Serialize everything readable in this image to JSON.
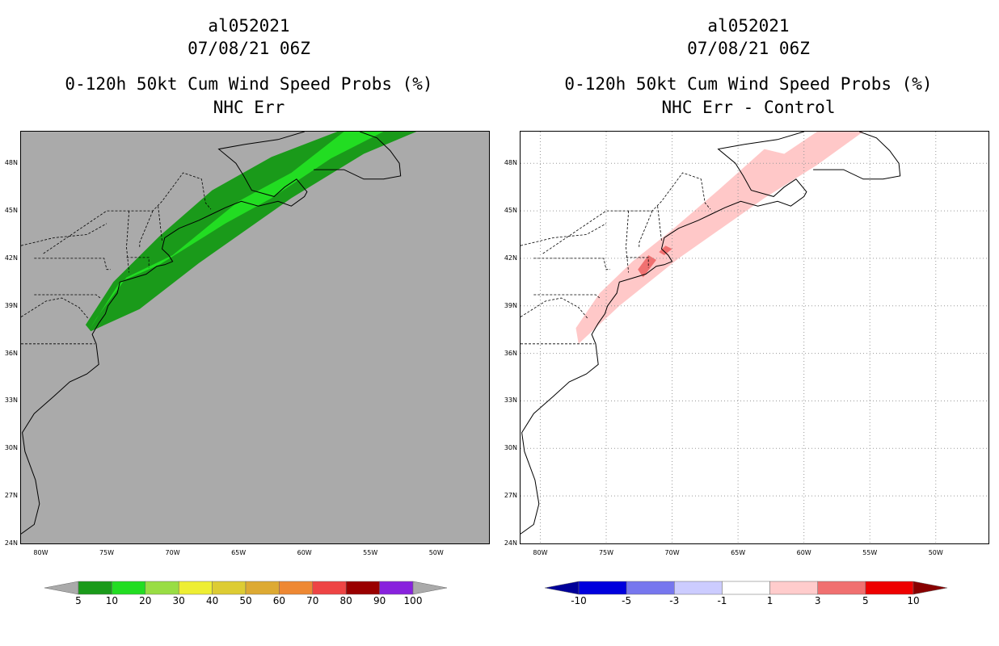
{
  "left_panel": {
    "storm_id": "al052021",
    "datetime": "07/08/21 06Z",
    "title": "0-120h 50kt Cum Wind Speed Probs (%)",
    "subtitle": "NHC Err",
    "background_color": "#aaaaaa",
    "colorbar": {
      "labels": [
        "5",
        "10",
        "20",
        "30",
        "40",
        "50",
        "60",
        "70",
        "80",
        "90",
        "100"
      ],
      "colors": [
        "#1a9a1a",
        "#22dd22",
        "#99dd44",
        "#eeee33",
        "#ddcc33",
        "#ddaa33",
        "#ee8833",
        "#ee4444",
        "#990000",
        "#8822dd"
      ],
      "extend_color": "#aaaaaa"
    }
  },
  "right_panel": {
    "storm_id": "al052021",
    "datetime": "07/08/21 06Z",
    "title": "0-120h 50kt Cum Wind Speed Probs (%)",
    "subtitle": "NHC Err - Control",
    "background_color": "#ffffff",
    "colorbar": {
      "labels": [
        "-10",
        "-5",
        "-3",
        "-1",
        "1",
        "3",
        "5",
        "10"
      ],
      "colors": [
        "#0000dd",
        "#7777ee",
        "#ccccff",
        "#ffffff",
        "#ffcccc",
        "#f07070",
        "#ee0000"
      ],
      "extend_low": "#000099",
      "extend_high": "#880000"
    }
  },
  "axes": {
    "lat_labels": [
      "48N",
      "45N",
      "42N",
      "39N",
      "36N",
      "33N",
      "30N",
      "27N",
      "24N"
    ],
    "lon_labels": [
      "80W",
      "75W",
      "70W",
      "65W",
      "60W",
      "55W",
      "50W"
    ]
  },
  "map_data": {
    "lon_range": [
      -81.5,
      -46
    ],
    "lat_range": [
      24,
      50
    ],
    "prob_swath_10": [
      [
        -76.3,
        37.5
      ],
      [
        -74,
        40.5
      ],
      [
        -71,
        41.6
      ],
      [
        -66,
        44.2
      ],
      [
        -62.5,
        45.8
      ],
      [
        -58,
        48.3
      ],
      [
        -54,
        50
      ],
      [
        -57,
        50
      ],
      [
        -61,
        47.4
      ],
      [
        -65,
        45.6
      ],
      [
        -70,
        42.2
      ],
      [
        -73.5,
        40.8
      ],
      [
        -75.8,
        38.2
      ]
    ],
    "prob_swath_5": [
      [
        -76.2,
        37.4
      ],
      [
        -72.5,
        38.8
      ],
      [
        -68,
        41.7
      ],
      [
        -61,
        45.8
      ],
      [
        -55.5,
        48.6
      ],
      [
        -51.5,
        50
      ],
      [
        -57.5,
        50
      ],
      [
        -62.5,
        48.4
      ],
      [
        -67,
        46.3
      ],
      [
        -71,
        43.4
      ],
      [
        -74.5,
        40.5
      ],
      [
        -76.6,
        37.8
      ]
    ],
    "diff_1_3": [
      [
        -77.1,
        36.6
      ],
      [
        -74,
        39
      ],
      [
        -69.5,
        42
      ],
      [
        -63,
        45.8
      ],
      [
        -59,
        47.9
      ],
      [
        -55.5,
        50
      ],
      [
        -59,
        50
      ],
      [
        -61.5,
        48.6
      ],
      [
        -63,
        48.9
      ],
      [
        -66.5,
        46.3
      ],
      [
        -70,
        43.8
      ],
      [
        -73,
        41.8
      ],
      [
        -75.5,
        39.8
      ],
      [
        -77.3,
        37.6
      ]
    ],
    "diff_3_5_a": [
      [
        -72.2,
        40.8
      ],
      [
        -71.2,
        41.9
      ],
      [
        -71.8,
        42.2
      ],
      [
        -72.6,
        41.3
      ]
    ],
    "diff_3_5_b": [
      [
        -70.6,
        42.2
      ],
      [
        -70,
        42.6
      ],
      [
        -70.5,
        42.8
      ],
      [
        -71,
        42.4
      ]
    ]
  }
}
